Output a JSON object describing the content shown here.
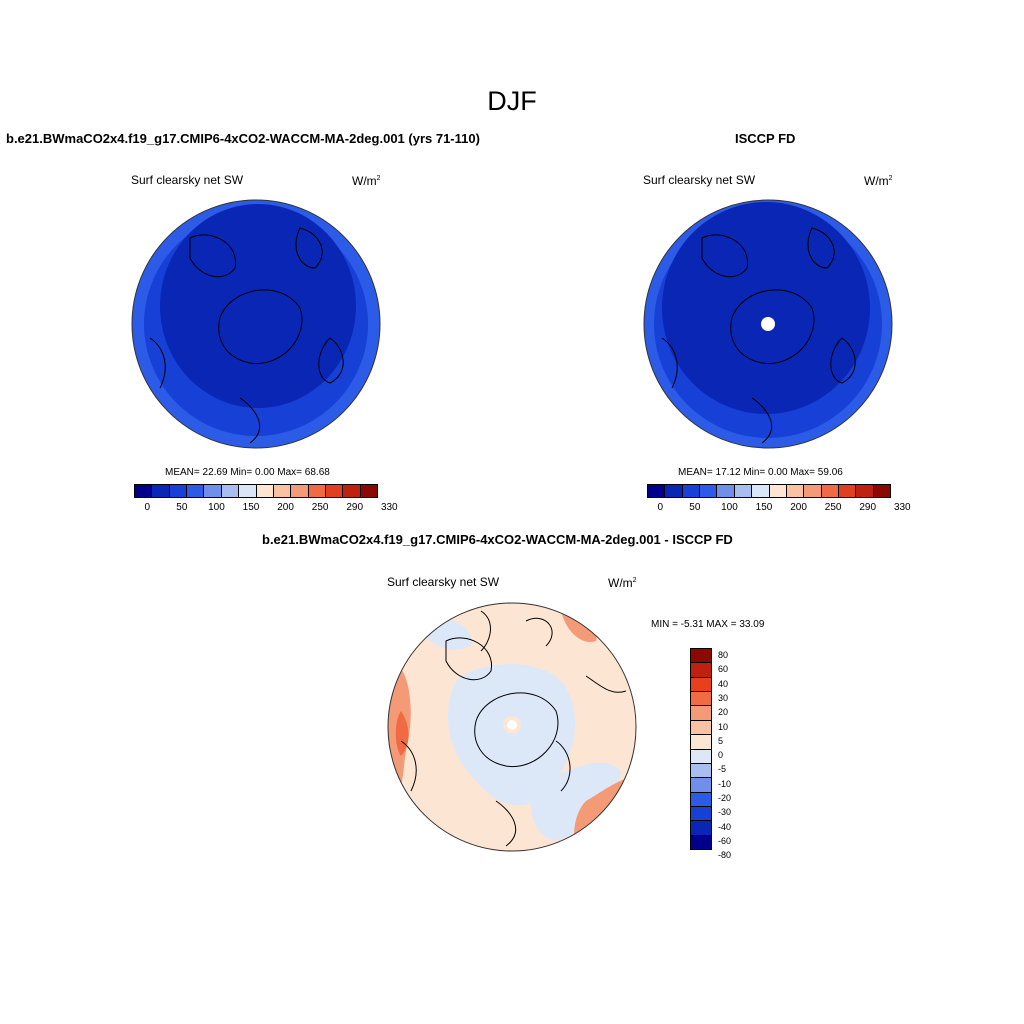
{
  "main_title": "DJF",
  "top_left": {
    "case_title": "b.e21.BWmaCO2x4.f19_g17.CMIP6-4xCO2-WACCM-MA-2deg.001 (yrs 71-110)",
    "var_label": "Surf clearsky net SW",
    "units": "W/m",
    "units_sup": "2",
    "stats": "MEAN=  22.69  Min=    0.00  Max=  68.68"
  },
  "top_right": {
    "case_title": "ISCCP FD",
    "var_label": "Surf clearsky net SW",
    "units": "W/m",
    "units_sup": "2",
    "stats": "MEAN=  17.12  Min=    0.00  Max=  59.06"
  },
  "bottom": {
    "case_title": "b.e21.BWmaCO2x4.f19_g17.CMIP6-4xCO2-WACCM-MA-2deg.001 - ISCCP FD",
    "var_label": "Surf clearsky net SW",
    "units": "W/m",
    "units_sup": "2",
    "stats": "MIN =  -5.31 MAX =  33.09"
  },
  "colorbar_abs": {
    "colors": [
      "#00008b",
      "#0a26b4",
      "#1640d6",
      "#2c5be8",
      "#6f8fe8",
      "#a9bef0",
      "#d9e6f8",
      "#fde5d3",
      "#f8c2a3",
      "#f49a76",
      "#f06a43",
      "#e04020",
      "#c0200e",
      "#8b0a00"
    ],
    "labels": [
      "0",
      "50",
      "100",
      "150",
      "200",
      "250",
      "290",
      "330"
    ]
  },
  "colorbar_diff": {
    "colors": [
      "#8b0a00",
      "#c0200e",
      "#e8401a",
      "#f06a43",
      "#f49a76",
      "#f8c2a3",
      "#fde5d3",
      "#dce8f8",
      "#a9bef0",
      "#6f8fe8",
      "#2c5be8",
      "#1640d6",
      "#0a26b4",
      "#00008b"
    ],
    "labels": [
      "80",
      "60",
      "40",
      "30",
      "20",
      "10",
      "5",
      "0",
      "-5",
      "-10",
      "-20",
      "-30",
      "-40",
      "-60",
      "-80"
    ]
  },
  "map_colors": {
    "abs_dark": "#0a26b4",
    "abs_mid": "#1640d6",
    "abs_light": "#2c5be8",
    "diff_warm": "#fde5d3",
    "diff_cool": "#dce8f8",
    "diff_orange": "#f49a76",
    "diff_red": "#f06a43"
  }
}
